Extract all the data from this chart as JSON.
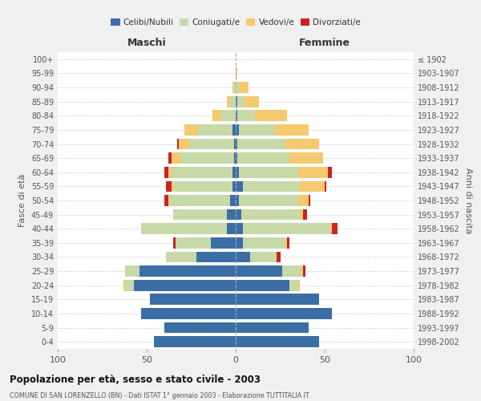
{
  "age_groups": [
    "0-4",
    "5-9",
    "10-14",
    "15-19",
    "20-24",
    "25-29",
    "30-34",
    "35-39",
    "40-44",
    "45-49",
    "50-54",
    "55-59",
    "60-64",
    "65-69",
    "70-74",
    "75-79",
    "80-84",
    "85-89",
    "90-94",
    "95-99",
    "100+"
  ],
  "birth_years": [
    "1998-2002",
    "1993-1997",
    "1988-1992",
    "1983-1987",
    "1978-1982",
    "1973-1977",
    "1968-1972",
    "1963-1967",
    "1958-1962",
    "1953-1957",
    "1948-1952",
    "1943-1947",
    "1938-1942",
    "1933-1937",
    "1928-1932",
    "1923-1927",
    "1918-1922",
    "1913-1917",
    "1908-1912",
    "1903-1907",
    "≤ 1902"
  ],
  "male": {
    "celibe": [
      46,
      40,
      53,
      48,
      57,
      54,
      22,
      14,
      5,
      5,
      3,
      2,
      2,
      1,
      1,
      2,
      0,
      0,
      0,
      0,
      0
    ],
    "coniugato": [
      0,
      0,
      0,
      0,
      5,
      8,
      17,
      20,
      48,
      30,
      34,
      33,
      34,
      30,
      25,
      19,
      8,
      3,
      1,
      0,
      0
    ],
    "vedovo": [
      0,
      0,
      0,
      0,
      1,
      0,
      0,
      0,
      0,
      0,
      1,
      1,
      2,
      5,
      6,
      8,
      5,
      2,
      1,
      0,
      0
    ],
    "divorziato": [
      0,
      0,
      0,
      0,
      0,
      0,
      0,
      1,
      0,
      0,
      2,
      3,
      2,
      2,
      1,
      0,
      0,
      0,
      0,
      0,
      0
    ]
  },
  "female": {
    "nubile": [
      47,
      41,
      54,
      47,
      30,
      26,
      8,
      4,
      4,
      3,
      2,
      4,
      2,
      1,
      1,
      2,
      1,
      1,
      0,
      0,
      0
    ],
    "coniugata": [
      0,
      0,
      0,
      0,
      5,
      11,
      15,
      24,
      49,
      33,
      33,
      32,
      33,
      29,
      27,
      20,
      10,
      4,
      2,
      0,
      0
    ],
    "vedova": [
      0,
      0,
      0,
      0,
      1,
      1,
      0,
      1,
      1,
      2,
      6,
      14,
      17,
      19,
      19,
      19,
      18,
      8,
      5,
      1,
      0
    ],
    "divorziata": [
      0,
      0,
      0,
      0,
      0,
      1,
      2,
      1,
      3,
      2,
      1,
      1,
      2,
      0,
      0,
      0,
      0,
      0,
      0,
      0,
      0
    ]
  },
  "colors": {
    "celibe": "#3a6ea5",
    "coniugato": "#c8d9a8",
    "vedovo": "#f5c96e",
    "divorziato": "#cc2222"
  },
  "xlim": 100,
  "title": "Popolazione per età, sesso e stato civile - 2003",
  "subtitle": "COMUNE DI SAN LORENZELLO (BN) - Dati ISTAT 1° gennaio 2003 - Elaborazione TUTTITALIA.IT",
  "ylabel_left": "Fasce di età",
  "ylabel_right": "Anni di nascita",
  "xlabel_left": "Maschi",
  "xlabel_right": "Femmine",
  "bg_color": "#f0f0f0",
  "plot_bg": "#ffffff"
}
